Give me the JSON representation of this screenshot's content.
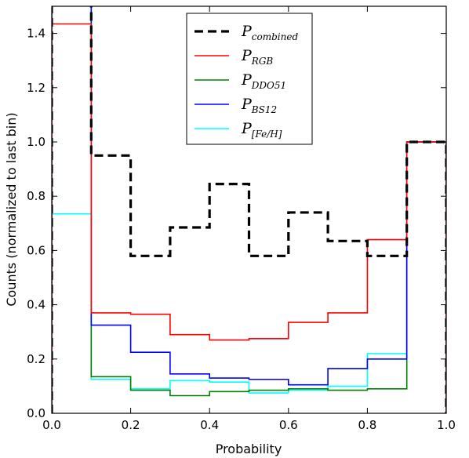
{
  "chart_data": {
    "type": "line",
    "xlabel": "Probability",
    "ylabel": "Counts (normalized to last bin)",
    "xlim": [
      0.0,
      1.0
    ],
    "ylim": [
      0.0,
      1.5
    ],
    "x_ticks": [
      "0.0",
      "0.2",
      "0.4",
      "0.6",
      "0.8",
      "1.0"
    ],
    "y_ticks": [
      "0.0",
      "0.2",
      "0.4",
      "0.6",
      "0.8",
      "1.0",
      "1.2",
      "1.4"
    ],
    "bin_edges": [
      0.0,
      0.1,
      0.2,
      0.3,
      0.4,
      0.5,
      0.6,
      0.7,
      0.8,
      0.9,
      1.0
    ],
    "grid": false,
    "legend_position": "top-center",
    "series": [
      {
        "name": "P",
        "subscript": "combined",
        "color": "#000000",
        "style": "dashed",
        "values": [
          1.6,
          0.95,
          0.58,
          0.685,
          0.845,
          0.58,
          0.74,
          0.635,
          0.58,
          1.0
        ]
      },
      {
        "name": "P",
        "subscript": "RGB",
        "color": "#ff0000",
        "style": "solid",
        "values": [
          1.435,
          0.37,
          0.365,
          0.29,
          0.27,
          0.275,
          0.335,
          0.37,
          0.64,
          1.0
        ]
      },
      {
        "name": "P",
        "subscript": "DDO51",
        "color": "#008000",
        "style": "solid",
        "values": [
          1.6,
          0.135,
          0.085,
          0.065,
          0.08,
          0.085,
          0.09,
          0.085,
          0.09,
          1.0
        ]
      },
      {
        "name": "P",
        "subscript": "BS12",
        "color": "#0000ff",
        "style": "solid",
        "values": [
          1.6,
          0.325,
          0.225,
          0.145,
          0.13,
          0.125,
          0.105,
          0.165,
          0.2,
          1.0
        ]
      },
      {
        "name": "P",
        "subscript": "[Fe/H]",
        "color": "#00ffff",
        "style": "solid",
        "values": [
          0.735,
          0.125,
          0.09,
          0.12,
          0.115,
          0.075,
          0.085,
          0.1,
          0.22,
          1.0
        ]
      }
    ]
  }
}
